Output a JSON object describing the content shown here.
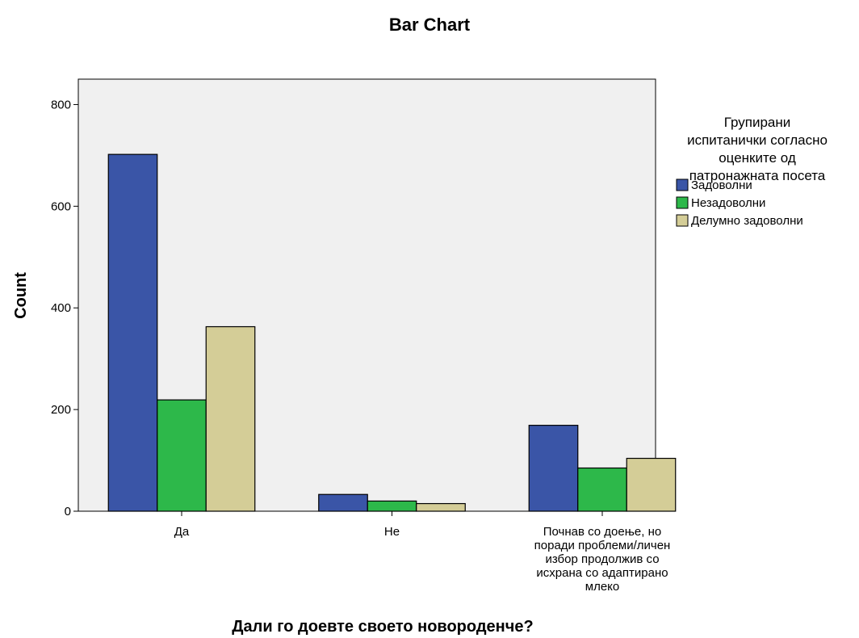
{
  "chart_data": {
    "type": "bar",
    "title": "Bar Chart",
    "xlabel": "Дали го доевте своето новороденче?",
    "ylabel": "Count",
    "ylim": [
      0,
      850
    ],
    "yticks": [
      0,
      200,
      400,
      600,
      800
    ],
    "grid": false,
    "legend_position": "right",
    "legend_title": [
      "Групирани",
      "испитанички согласно",
      "оценките од",
      "патронажната посета"
    ],
    "categories": [
      [
        "Да"
      ],
      [
        "Не"
      ],
      [
        "Почнав со доење, но",
        "поради проблеми/личен",
        "избор продолжив со",
        "исхрана со адаптирано",
        "млеко"
      ]
    ],
    "series": [
      {
        "name": "Задоволни",
        "color": "#3a55a7",
        "values": [
          702,
          33,
          169
        ]
      },
      {
        "name": "Незадоволни",
        "color": "#2db84a",
        "values": [
          219,
          20,
          85
        ]
      },
      {
        "name": "Делумно задоволни",
        "color": "#d4cd97",
        "values": [
          363,
          15,
          104
        ]
      }
    ],
    "plot_background": "#f0f0f0"
  }
}
